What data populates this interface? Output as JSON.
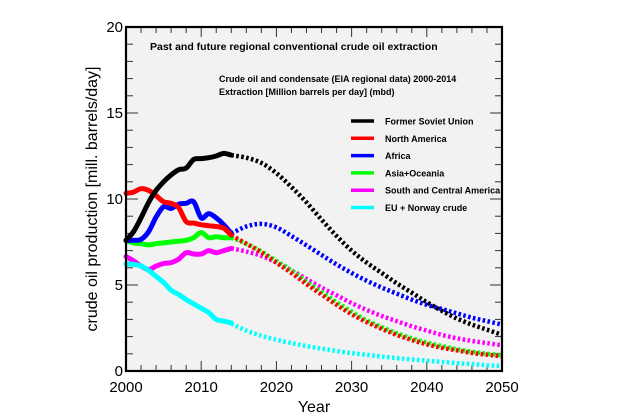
{
  "chart_data": {
    "type": "line",
    "title": "Past and future regional conventional crude oil extraction",
    "subtitle_lines": [
      "Crude oil and condensate (EIA regional data) 2000-2014",
      "Extraction [Million barrels per day] (mbd)"
    ],
    "xlabel": "Year",
    "ylabel": "crude oil production [mill. barrels/day]",
    "xlim": [
      2000,
      2050
    ],
    "ylim": [
      0,
      20
    ],
    "xticks": [
      2000,
      2010,
      2020,
      2030,
      2040,
      2050
    ],
    "yticks": [
      0,
      5,
      10,
      15,
      20
    ],
    "x_minor_step": 2,
    "y_minor_step": 1,
    "grid": false,
    "legend_position": "upper-right",
    "plot_background": "#f2f2f2",
    "series": [
      {
        "name": "Former Soviet Union",
        "color": "#000000",
        "historical": {
          "x": [
            2000,
            2001,
            2002,
            2003,
            2004,
            2005,
            2006,
            2007,
            2008,
            2009,
            2010,
            2011,
            2012,
            2013,
            2014
          ],
          "y": [
            7.6,
            8.1,
            8.9,
            9.8,
            10.5,
            11.0,
            11.4,
            11.7,
            11.8,
            12.3,
            12.35,
            12.4,
            12.5,
            12.65,
            12.55
          ]
        },
        "projection": {
          "x": [
            2014,
            2016,
            2018,
            2020,
            2022,
            2024,
            2026,
            2028,
            2030,
            2032,
            2034,
            2036,
            2038,
            2040,
            2042,
            2044,
            2046,
            2048,
            2050
          ],
          "y": [
            12.55,
            12.4,
            12.1,
            11.5,
            10.7,
            9.8,
            8.8,
            7.85,
            7.0,
            6.3,
            5.7,
            5.1,
            4.55,
            4.0,
            3.5,
            3.05,
            2.7,
            2.4,
            2.1
          ]
        }
      },
      {
        "name": "North America",
        "color": "#ff0000",
        "historical": {
          "x": [
            2000,
            2001,
            2002,
            2003,
            2004,
            2005,
            2006,
            2007,
            2008,
            2009,
            2010,
            2011,
            2012,
            2013,
            2014
          ],
          "y": [
            10.33,
            10.4,
            10.6,
            10.5,
            10.2,
            9.84,
            9.75,
            9.5,
            8.68,
            8.6,
            8.5,
            8.45,
            8.4,
            8.3,
            7.9
          ]
        },
        "projection": {
          "x": [
            2014,
            2016,
            2018,
            2020,
            2022,
            2024,
            2026,
            2028,
            2030,
            2032,
            2034,
            2036,
            2038,
            2040,
            2042,
            2044,
            2046,
            2048,
            2050
          ],
          "y": [
            7.9,
            7.4,
            6.9,
            6.3,
            5.7,
            5.05,
            4.45,
            3.85,
            3.3,
            2.85,
            2.45,
            2.1,
            1.8,
            1.55,
            1.35,
            1.2,
            1.05,
            0.95,
            0.85
          ]
        }
      },
      {
        "name": "Africa",
        "color": "#0000ff",
        "historical": {
          "x": [
            2000,
            2001,
            2002,
            2003,
            2004,
            2005,
            2006,
            2007,
            2008,
            2009,
            2010,
            2011,
            2012,
            2013,
            2014
          ],
          "y": [
            7.6,
            7.6,
            7.65,
            8.1,
            8.95,
            9.55,
            9.45,
            9.7,
            9.75,
            9.84,
            8.9,
            9.15,
            8.9,
            8.5,
            8.0
          ]
        },
        "projection": {
          "x": [
            2014,
            2016,
            2018,
            2020,
            2022,
            2024,
            2026,
            2028,
            2030,
            2032,
            2034,
            2036,
            2038,
            2040,
            2042,
            2044,
            2046,
            2048,
            2050
          ],
          "y": [
            8.0,
            8.4,
            8.55,
            8.35,
            7.85,
            7.3,
            6.75,
            6.2,
            5.7,
            5.25,
            4.85,
            4.5,
            4.15,
            3.85,
            3.6,
            3.35,
            3.1,
            2.9,
            2.7
          ]
        }
      },
      {
        "name": "Asia+Oceania",
        "color": "#00ff00",
        "historical": {
          "x": [
            2000,
            2001,
            2002,
            2003,
            2004,
            2005,
            2006,
            2007,
            2008,
            2009,
            2010,
            2011,
            2012,
            2013,
            2014
          ],
          "y": [
            7.58,
            7.45,
            7.4,
            7.33,
            7.4,
            7.45,
            7.5,
            7.55,
            7.6,
            7.75,
            8.05,
            7.75,
            7.8,
            7.75,
            7.75
          ]
        },
        "projection": {
          "x": [
            2014,
            2016,
            2018,
            2020,
            2022,
            2024,
            2026,
            2028,
            2030,
            2032,
            2034,
            2036,
            2038,
            2040,
            2042,
            2044,
            2046,
            2048,
            2050
          ],
          "y": [
            7.75,
            7.4,
            6.95,
            6.4,
            5.85,
            5.2,
            4.6,
            4.0,
            3.45,
            2.95,
            2.55,
            2.2,
            1.9,
            1.65,
            1.45,
            1.27,
            1.12,
            1.0,
            0.92
          ]
        }
      },
      {
        "name": "South and Central America",
        "color": "#ff00ff",
        "historical": {
          "x": [
            2000,
            2001,
            2002,
            2003,
            2004,
            2005,
            2006,
            2007,
            2008,
            2009,
            2010,
            2011,
            2012,
            2013,
            2014
          ],
          "y": [
            6.65,
            6.4,
            6.1,
            5.9,
            6.1,
            6.25,
            6.3,
            6.5,
            6.88,
            6.8,
            6.8,
            7.0,
            6.88,
            7.0,
            7.13
          ]
        },
        "projection": {
          "x": [
            2014,
            2016,
            2018,
            2020,
            2022,
            2024,
            2026,
            2028,
            2030,
            2032,
            2034,
            2036,
            2038,
            2040,
            2042,
            2044,
            2046,
            2048,
            2050
          ],
          "y": [
            7.13,
            6.95,
            6.7,
            6.3,
            5.85,
            5.35,
            4.85,
            4.4,
            3.95,
            3.55,
            3.2,
            2.9,
            2.6,
            2.35,
            2.1,
            1.9,
            1.75,
            1.62,
            1.5
          ]
        }
      },
      {
        "name": "EU + Norway crude",
        "color": "#00ffff",
        "historical": {
          "x": [
            2000,
            2001,
            2002,
            2003,
            2004,
            2005,
            2006,
            2007,
            2008,
            2009,
            2010,
            2011,
            2012,
            2013,
            2014
          ],
          "y": [
            6.22,
            6.2,
            6.1,
            5.85,
            5.5,
            5.15,
            4.7,
            4.45,
            4.15,
            3.9,
            3.65,
            3.4,
            3.0,
            2.9,
            2.8
          ]
        },
        "projection": {
          "x": [
            2014,
            2016,
            2018,
            2020,
            2022,
            2024,
            2026,
            2028,
            2030,
            2032,
            2034,
            2036,
            2038,
            2040,
            2042,
            2044,
            2046,
            2048,
            2050
          ],
          "y": [
            2.75,
            2.35,
            2.05,
            1.82,
            1.62,
            1.45,
            1.3,
            1.16,
            1.04,
            0.94,
            0.84,
            0.75,
            0.67,
            0.6,
            0.53,
            0.46,
            0.4,
            0.34,
            0.29
          ]
        }
      }
    ]
  }
}
